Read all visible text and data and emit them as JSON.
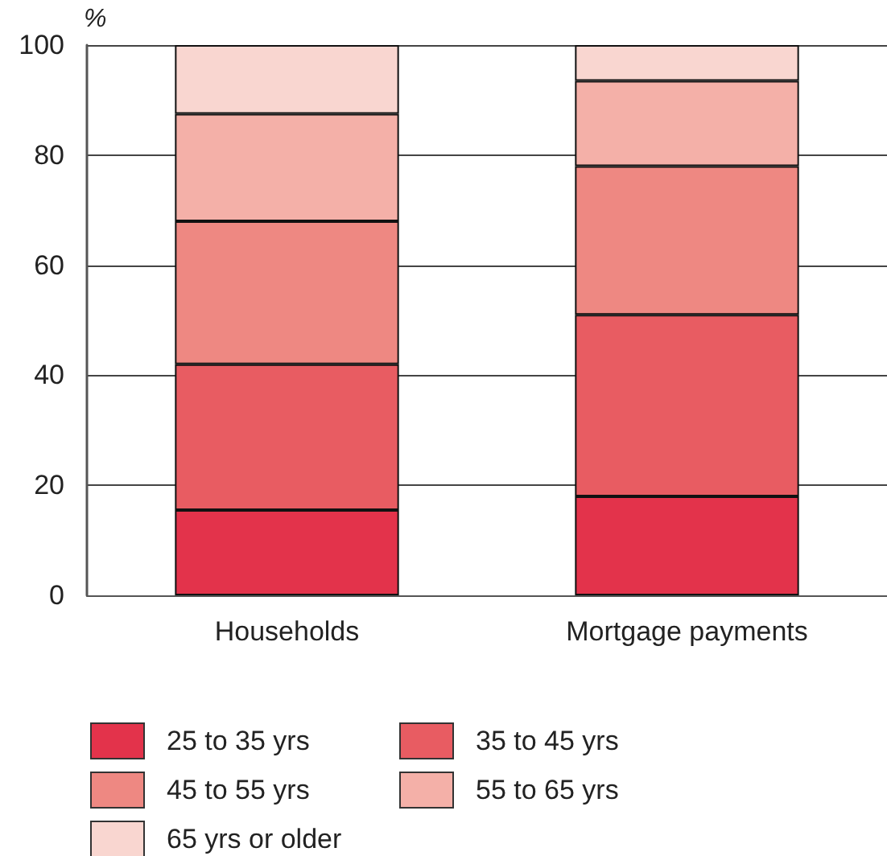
{
  "chart_data": {
    "type": "bar",
    "ylabel": "%",
    "categories": [
      "Households",
      "Mortgage payments"
    ],
    "stacked": true,
    "series": [
      {
        "name": "25 to 35 yrs",
        "color": "#e3334b",
        "values": [
          15.5,
          18
        ]
      },
      {
        "name": "35 to 45 yrs",
        "color": "#e85c62",
        "values": [
          26.5,
          33
        ]
      },
      {
        "name": "45 to 55 yrs",
        "color": "#ee8882",
        "values": [
          26,
          27
        ]
      },
      {
        "name": "55 to 65 yrs",
        "color": "#f4b0a8",
        "values": [
          19.5,
          15.5
        ]
      },
      {
        "name": "65 yrs or older",
        "color": "#f9d6d0",
        "values": [
          12.5,
          6.5
        ]
      }
    ],
    "ylim": [
      0,
      100
    ],
    "yticks": [
      0,
      20,
      40,
      60,
      80,
      100
    ],
    "grid": "y",
    "legend": "bottom left"
  }
}
